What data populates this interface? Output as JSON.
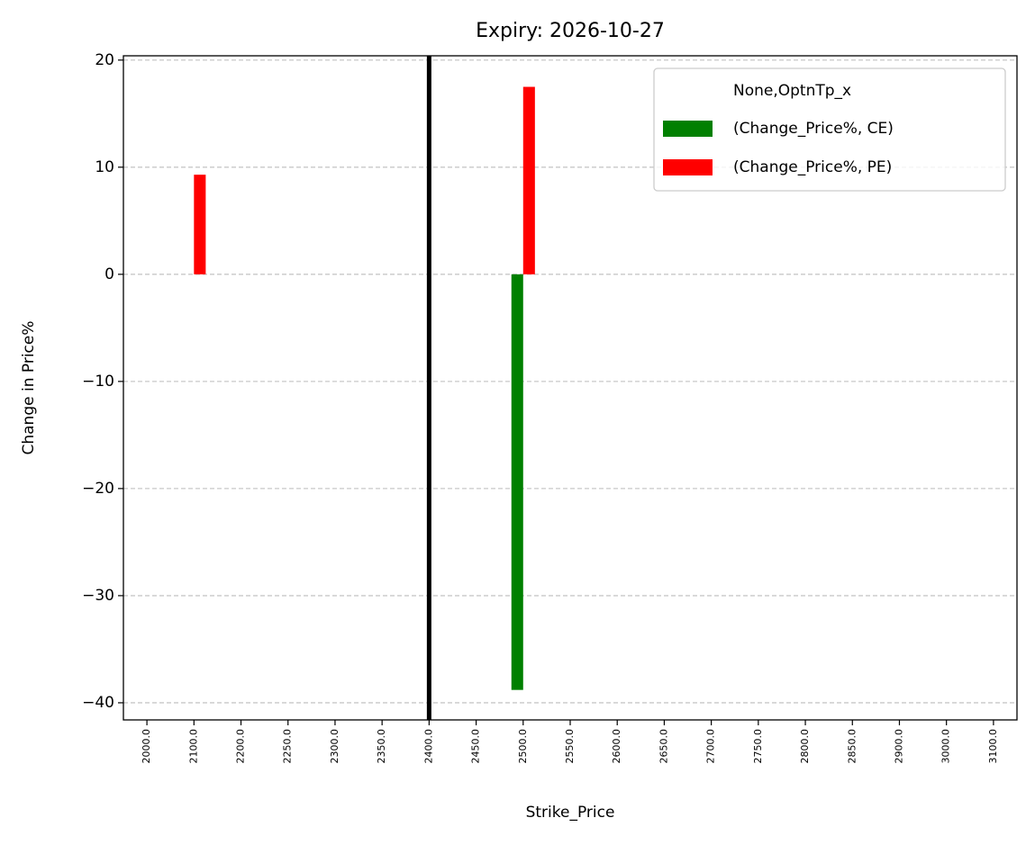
{
  "chart_data": {
    "type": "bar",
    "title": "Expiry: 2026-10-27",
    "x_label": "Strike_Price",
    "y_label": "Change in Price%",
    "categories": [
      "2000.0",
      "2100.0",
      "2200.0",
      "2250.0",
      "2300.0",
      "2350.0",
      "2400.0",
      "2450.0",
      "2500.0",
      "2550.0",
      "2600.0",
      "2650.0",
      "2700.0",
      "2750.0",
      "2800.0",
      "2850.0",
      "2900.0",
      "3000.0",
      "3100.0"
    ],
    "series": [
      {
        "name": "(Change_Price%, CE)",
        "color": "#008000",
        "values": [
          null,
          null,
          null,
          null,
          null,
          null,
          null,
          null,
          -38.8,
          null,
          null,
          null,
          null,
          null,
          null,
          null,
          null,
          null,
          null
        ]
      },
      {
        "name": "(Change_Price%, PE)",
        "color": "#ff0000",
        "values": [
          null,
          9.3,
          null,
          null,
          null,
          null,
          null,
          null,
          17.5,
          null,
          null,
          null,
          null,
          null,
          null,
          null,
          null,
          null,
          null
        ]
      }
    ],
    "legend_title": "None,OptnTp_x",
    "legend_loc": "upper right",
    "vline": {
      "category": "2400.0",
      "color": "#000000"
    },
    "ylim": [
      -41.6,
      20.4
    ],
    "yticks": [
      {
        "value": -40,
        "label": "−40"
      },
      {
        "value": -30,
        "label": "−30"
      },
      {
        "value": -20,
        "label": "−20"
      },
      {
        "value": -10,
        "label": "−10"
      },
      0,
      10,
      20
    ],
    "grid": true
  }
}
